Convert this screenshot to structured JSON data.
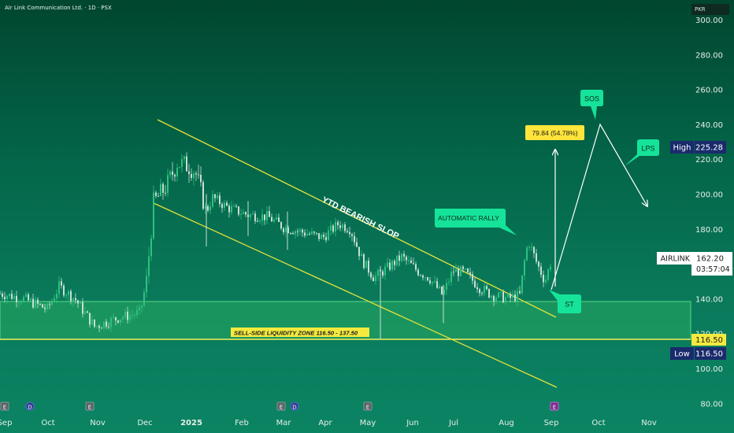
{
  "header": {
    "title": "Air Link Communication Ltd. · 1D · PSX",
    "currency": "PKR"
  },
  "price_scale": {
    "ticks": [
      "300.00",
      "280.00",
      "260.00",
      "240.00",
      "220.00",
      "200.00",
      "180.00",
      "160.00",
      "140.00",
      "120.00",
      "100.00",
      "80.00"
    ],
    "tick_values": [
      300,
      280,
      260,
      240,
      220,
      200,
      180,
      160,
      140,
      120,
      100,
      80
    ],
    "high_label": "High",
    "high_value": "225.28",
    "low_label": "Low",
    "low_value": "116.50",
    "level_tag": "116.50",
    "symbol": "AIRLINK",
    "last_price": "162.20",
    "countdown": "03:57:04"
  },
  "time_axis": {
    "labels": [
      "Sep",
      "Oct",
      "Nov",
      "Dec",
      "2025",
      "Feb",
      "Mar",
      "Apr",
      "May",
      "Jun",
      "Jul",
      "Aug",
      "Sep",
      "Oct",
      "Nov"
    ]
  },
  "events": [
    {
      "letter": "E",
      "kind": "earnings"
    },
    {
      "letter": "D",
      "kind": "dividend"
    },
    {
      "letter": "E",
      "kind": "earnings"
    },
    {
      "letter": "E",
      "kind": "earnings"
    },
    {
      "letter": "D",
      "kind": "dividend"
    },
    {
      "letter": "E",
      "kind": "earnings"
    },
    {
      "letter": "E",
      "kind": "earnings-upcoming"
    }
  ],
  "annotations": {
    "trendline_label": "YTD BEARISH SLOP",
    "zone_label": "SELL-SIDE LIQUIDITY ZONE 116.50 - 137.50",
    "callout_rally": "AUTOMATIC RALLY",
    "callout_st": "ST",
    "callout_sos": "SOS",
    "callout_lps": "LPS",
    "measure_label": "79.84 (54.78%)"
  },
  "colors": {
    "up": "#2ec27e",
    "down": "#c9ded4",
    "trendline": "#e6e23a",
    "zone_fill": "#2fb35b",
    "callout": "#16e39a",
    "measure_box": "#ffe53b",
    "low_tag_bg": "#1a2a6c"
  },
  "chart_data": {
    "type": "candlestick",
    "x": [
      "Sep",
      "Oct",
      "Nov",
      "Dec",
      "2025",
      "Feb",
      "Mar",
      "Apr",
      "May",
      "Jun",
      "Jul",
      "Aug",
      "Sep"
    ],
    "close": [
      143,
      137,
      126,
      140,
      216,
      188,
      186,
      178,
      150,
      162,
      152,
      142,
      162.2
    ],
    "high_of_period": 225.28,
    "low_of_period": 116.5,
    "last_close": 162.2,
    "ylim": [
      80,
      300
    ],
    "zone": [
      116.5,
      137.5
    ],
    "measure_change": 79.84,
    "measure_change_pct": 54.78
  }
}
